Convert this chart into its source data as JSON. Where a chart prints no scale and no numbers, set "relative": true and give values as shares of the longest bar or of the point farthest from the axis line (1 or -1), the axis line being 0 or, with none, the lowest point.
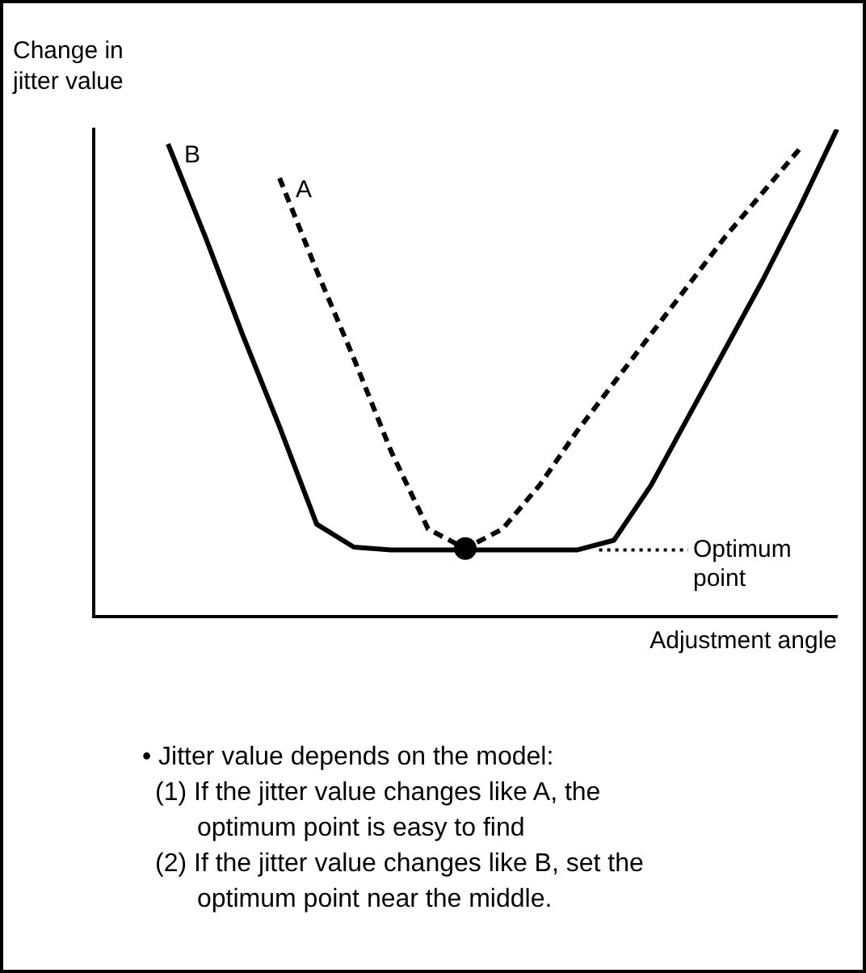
{
  "chart_data": {
    "type": "line",
    "relative": true,
    "ylabel": "Change in jitter value",
    "xlabel": "Adjustment angle",
    "categories": [
      null,
      null,
      null,
      null,
      null,
      null,
      null,
      null,
      null,
      null,
      null,
      null,
      null,
      null,
      null,
      null,
      null,
      null,
      null,
      null,
      null
    ],
    "series": [
      {
        "name": "B",
        "color": "#000000",
        "line_style": "solid",
        "values": [
          null,
          null,
          0.97,
          0.78,
          0.58,
          0.39,
          0.19,
          0.143,
          0.137,
          0.137,
          0.137,
          0.137,
          0.137,
          0.137,
          0.157,
          0.27,
          0.41,
          0.55,
          0.69,
          0.84,
          1
        ]
      },
      {
        "name": "A",
        "color": "#000000",
        "line_style": "dashed",
        "values": [
          null,
          null,
          null,
          null,
          null,
          0.9,
          0.71,
          0.53,
          0.34,
          0.18,
          0.14,
          0.18,
          0.27,
          0.38,
          0.48,
          0.58,
          0.68,
          0.78,
          0.87,
          0.96,
          null
        ]
      }
    ],
    "marker": "none",
    "legend": false,
    "grid": false,
    "annotations": [
      "Optimum point",
      "• Jitter value depends on the model:",
      "(1) If the jitter value changes like A, the optimum point is easy to find",
      "(2) If the jitter value changes like B, set the optimum point near the middle."
    ]
  }
}
